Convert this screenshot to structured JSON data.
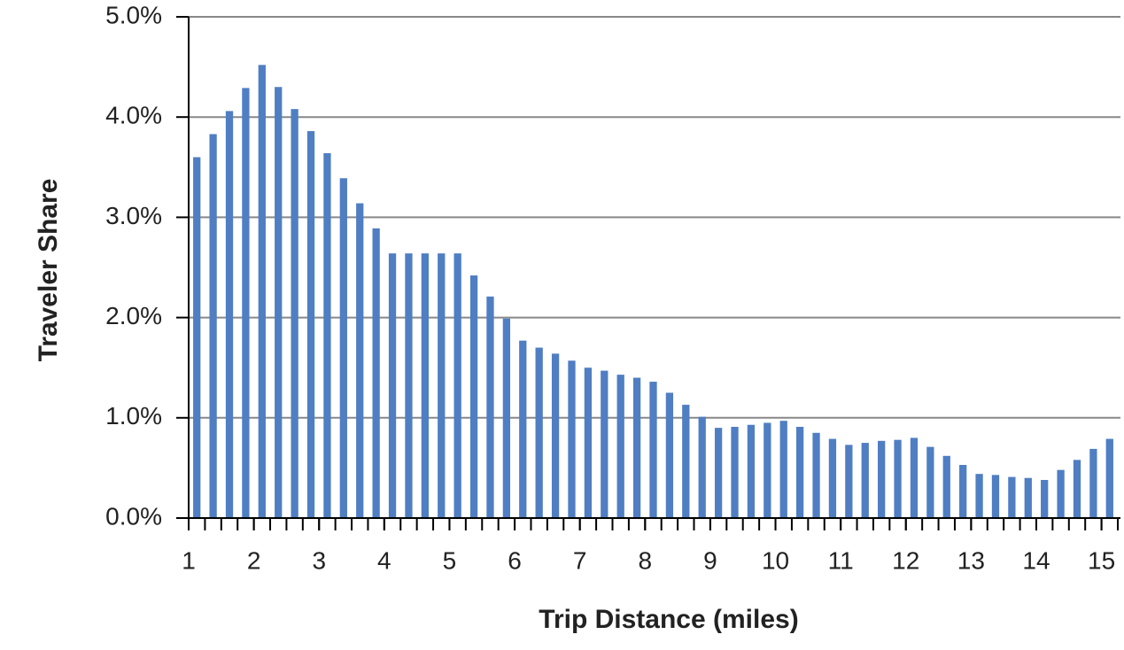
{
  "chart_data": {
    "type": "bar",
    "x_label": "Trip Distance (miles)",
    "y_label": "Traveler Share",
    "x": [
      1.125,
      1.375,
      1.625,
      1.875,
      2.125,
      2.375,
      2.625,
      2.875,
      3.125,
      3.375,
      3.625,
      3.875,
      4.125,
      4.375,
      4.625,
      4.875,
      5.125,
      5.375,
      5.625,
      5.875,
      6.125,
      6.375,
      6.625,
      6.875,
      7.125,
      7.375,
      7.625,
      7.875,
      8.125,
      8.375,
      8.625,
      8.875,
      9.125,
      9.375,
      9.625,
      9.875,
      10.125,
      10.375,
      10.625,
      10.875,
      11.125,
      11.375,
      11.625,
      11.875,
      12.125,
      12.375,
      12.625,
      12.875,
      13.125,
      13.375,
      13.625,
      13.875,
      14.125,
      14.375,
      14.625,
      14.875,
      15.125
    ],
    "values": [
      3.6,
      3.83,
      4.06,
      4.29,
      4.52,
      4.3,
      4.08,
      3.86,
      3.64,
      3.39,
      3.14,
      2.89,
      2.64,
      2.64,
      2.64,
      2.64,
      2.64,
      2.42,
      2.21,
      1.99,
      1.77,
      1.7,
      1.64,
      1.57,
      1.5,
      1.47,
      1.43,
      1.4,
      1.36,
      1.25,
      1.13,
      1.01,
      0.9,
      0.91,
      0.93,
      0.95,
      0.97,
      0.91,
      0.85,
      0.79,
      0.73,
      0.75,
      0.77,
      0.78,
      0.8,
      0.71,
      0.62,
      0.53,
      0.44,
      0.43,
      0.41,
      0.4,
      0.38,
      0.48,
      0.58,
      0.69,
      0.79
    ],
    "color": "#4f7ec3",
    "xlim": [
      1,
      15.25
    ],
    "xticks": [
      1,
      2,
      3,
      4,
      5,
      6,
      7,
      8,
      9,
      10,
      11,
      12,
      13,
      14,
      15
    ],
    "ylim": [
      0,
      5
    ],
    "yticks": [
      {
        "value": 0,
        "label": "0.0%"
      },
      {
        "value": 1,
        "label": "1.0%"
      },
      {
        "value": 2,
        "label": "2.0%"
      },
      {
        "value": 3,
        "label": "3.0%"
      },
      {
        "value": 4,
        "label": "4.0%"
      },
      {
        "value": 5,
        "label": "5.0%"
      }
    ],
    "grid": true
  }
}
